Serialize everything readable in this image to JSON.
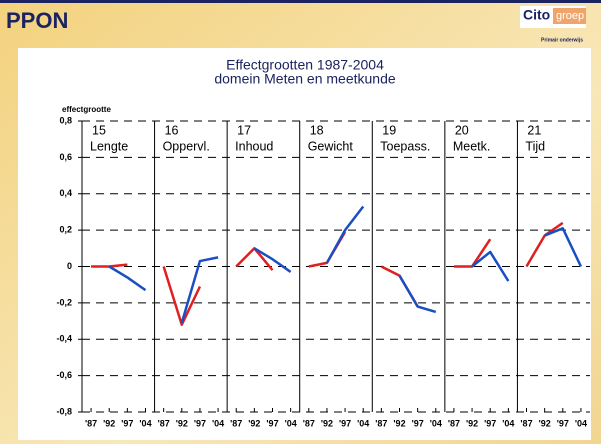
{
  "header": {
    "title": "PPON",
    "logo": "Cito",
    "logo_suffix": "groep",
    "logo_tagline": "Primair onderwijs"
  },
  "chart_data": {
    "type": "line",
    "title": "Effectgrootten 1987-2004",
    "subtitle": "domein Meten en meetkunde",
    "y_label": "effectgrootte",
    "categories": [
      "'87",
      "'92",
      "'97",
      "'04"
    ],
    "ylim": [
      -0.8,
      0.8
    ],
    "yticks": [
      {
        "value": 0.8,
        "label": "0,8"
      },
      {
        "value": 0.6,
        "label": "0,6"
      },
      {
        "value": 0.4,
        "label": "0,4"
      },
      {
        "value": 0.2,
        "label": "0,2"
      },
      0,
      {
        "value": -0.2,
        "label": "-0,2"
      },
      {
        "value": -0.4,
        "label": "-0,4"
      },
      {
        "value": -0.6,
        "label": "-0,6"
      },
      {
        "value": -0.8,
        "label": "-0,8"
      }
    ],
    "grid": true,
    "panels": [
      {
        "number": "15",
        "name": "Lengte",
        "series": [
          {
            "color": "#e01f1f",
            "values": [
              0,
              0,
              0.01,
              null
            ]
          },
          {
            "color": "#1a4fc4",
            "values": [
              null,
              0,
              -0.06,
              -0.13
            ]
          }
        ]
      },
      {
        "number": "16",
        "name": "Oppervl.",
        "series": [
          {
            "color": "#e01f1f",
            "values": [
              0,
              -0.32,
              -0.11,
              null
            ]
          },
          {
            "color": "#1a4fc4",
            "values": [
              null,
              -0.31,
              0.03,
              0.05
            ]
          }
        ]
      },
      {
        "number": "17",
        "name": "Inhoud",
        "series": [
          {
            "color": "#e01f1f",
            "values": [
              0,
              0.1,
              -0.02,
              null
            ]
          },
          {
            "color": "#1a4fc4",
            "values": [
              null,
              0.1,
              0.04,
              -0.03
            ]
          }
        ]
      },
      {
        "number": "18",
        "name": "Gewicht",
        "series": [
          {
            "color": "#e01f1f",
            "values": [
              0,
              0.02,
              0.19,
              null
            ]
          },
          {
            "color": "#1a4fc4",
            "values": [
              null,
              0.02,
              0.2,
              0.33
            ]
          }
        ]
      },
      {
        "number": "19",
        "name": "Toepass.",
        "series": [
          {
            "color": "#e01f1f",
            "values": [
              0,
              -0.05,
              -0.22,
              null
            ]
          },
          {
            "color": "#1a4fc4",
            "values": [
              null,
              -0.05,
              -0.22,
              -0.25
            ]
          }
        ]
      },
      {
        "number": "20",
        "name": "Meetk.",
        "series": [
          {
            "color": "#e01f1f",
            "values": [
              0,
              0,
              0.15,
              null
            ]
          },
          {
            "color": "#1a4fc4",
            "values": [
              null,
              0,
              0.08,
              -0.08
            ]
          }
        ]
      },
      {
        "number": "21",
        "name": "Tijd",
        "series": [
          {
            "color": "#e01f1f",
            "values": [
              0,
              0.17,
              0.24,
              null
            ]
          },
          {
            "color": "#1a4fc4",
            "values": [
              null,
              0.17,
              0.21,
              0
            ]
          }
        ]
      }
    ]
  }
}
